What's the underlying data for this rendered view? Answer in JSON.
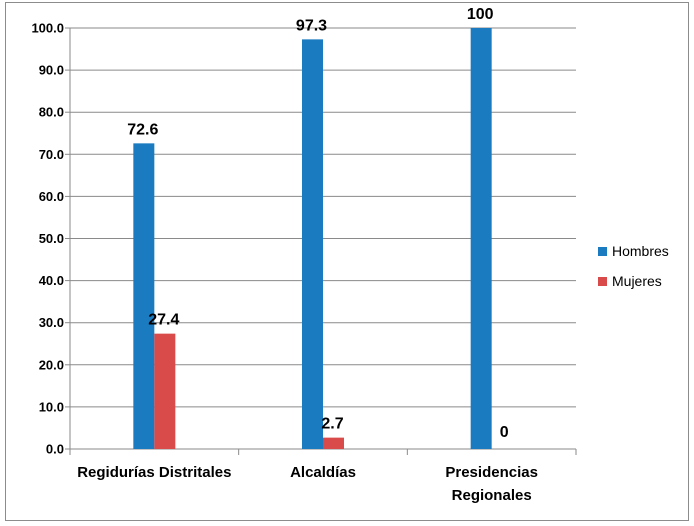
{
  "chart_data": {
    "type": "bar",
    "categories": [
      "Regidurías Distritales",
      "Alcaldías",
      "Presidencias Regionales"
    ],
    "category_lines": [
      [
        "Regidurías Distritales"
      ],
      [
        "Alcaldías"
      ],
      [
        "Presidencias",
        "Regionales"
      ]
    ],
    "series": [
      {
        "name": "Hombres",
        "values": [
          72.6,
          97.3,
          100
        ],
        "labels": [
          "72.6",
          "97.3",
          "100"
        ],
        "color": "#1a7bc0"
      },
      {
        "name": "Mujeres",
        "values": [
          27.4,
          2.7,
          0
        ],
        "labels": [
          "27.4",
          "2.7",
          "0"
        ],
        "color": "#d94a4a"
      }
    ],
    "y_ticks": [
      "0.0",
      "10.0",
      "20.0",
      "30.0",
      "40.0",
      "50.0",
      "60.0",
      "70.0",
      "80.0",
      "90.0",
      "100.0"
    ],
    "ylim": [
      0,
      100
    ],
    "grid": true,
    "legend_position": "right",
    "title": "",
    "xlabel": "",
    "ylabel": ""
  }
}
